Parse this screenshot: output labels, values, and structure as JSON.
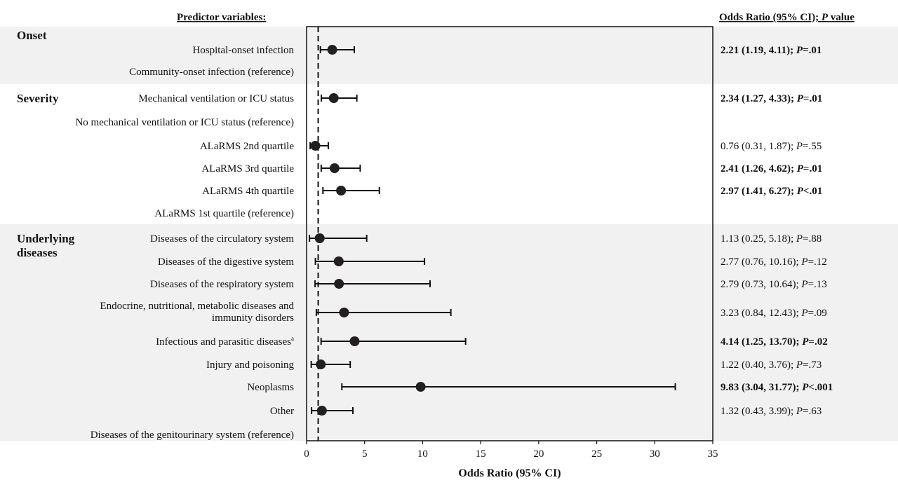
{
  "headers": {
    "predictors": "Predictor variables:",
    "result_prefix": "Odds Ratio (95% CI); ",
    "result_p": "P",
    "result_suffix": " value"
  },
  "chart_data": {
    "type": "forest",
    "xlabel": "Odds Ratio (95% CI)",
    "xlim": [
      0,
      35
    ],
    "xticks": [
      0,
      5,
      10,
      15,
      20,
      25,
      30,
      35
    ],
    "reference_line": 1,
    "groups": [
      {
        "label": "Onset",
        "label_lines": [
          "Onset"
        ],
        "shaded": true,
        "rows": [
          0,
          1
        ]
      },
      {
        "label": "Severity",
        "label_lines": [
          "Severity"
        ],
        "shaded": false,
        "rows": [
          2,
          7
        ]
      },
      {
        "label": "Underlying diseases",
        "label_lines": [
          "Underlying",
          "diseases"
        ],
        "shaded": true,
        "rows": [
          8,
          16
        ]
      }
    ],
    "rows": [
      {
        "label": "Hospital-onset infection",
        "or": 2.21,
        "lo": 1.19,
        "hi": 4.11,
        "ci": "2.21 (1.19, 4.11); ",
        "p": "=.01",
        "bold": true
      },
      {
        "label": "Community-onset infection (reference)"
      },
      {
        "label": "Mechanical ventilation or ICU status",
        "or": 2.34,
        "lo": 1.27,
        "hi": 4.33,
        "ci": "2.34 (1.27, 4.33); ",
        "p": "=.01",
        "bold": true
      },
      {
        "label": "No mechanical ventilation or ICU status (reference)"
      },
      {
        "label": "ALaRMS 2nd quartile",
        "or": 0.76,
        "lo": 0.31,
        "hi": 1.87,
        "ci": "0.76 (0.31, 1.87); ",
        "p": "=.55",
        "bold": false
      },
      {
        "label": "ALaRMS 3rd quartile",
        "or": 2.41,
        "lo": 1.26,
        "hi": 4.62,
        "ci": "2.41 (1.26, 4.62); ",
        "p": "=.01",
        "bold": true
      },
      {
        "label": "ALaRMS 4th quartile",
        "or": 2.97,
        "lo": 1.41,
        "hi": 6.27,
        "ci": "2.97 (1.41, 6.27); ",
        "p": "<.01",
        "bold": true
      },
      {
        "label": "ALaRMS 1st quartile (reference)"
      },
      {
        "label": "Diseases of the circulatory system",
        "or": 1.13,
        "lo": 0.25,
        "hi": 5.18,
        "ci": "1.13 (0.25, 5.18); ",
        "p": "=.88",
        "bold": false
      },
      {
        "label": "Diseases of the digestive system",
        "or": 2.77,
        "lo": 0.76,
        "hi": 10.16,
        "ci": "2.77 (0.76, 10.16); ",
        "p": "=.12",
        "bold": false
      },
      {
        "label": "Diseases of the respiratory system",
        "or": 2.79,
        "lo": 0.73,
        "hi": 10.64,
        "ci": "2.79 (0.73, 10.64); ",
        "p": "=.13",
        "bold": false
      },
      {
        "label": "Endocrine, nutritional, metabolic diseases and immunity disorders",
        "label_lines": [
          "Endocrine, nutritional, metabolic diseases and",
          "immunity disorders"
        ],
        "or": 3.23,
        "lo": 0.84,
        "hi": 12.43,
        "ci": "3.23 (0.84, 12.43); ",
        "p": "=.09",
        "bold": false
      },
      {
        "label": "Infectious and parasitic diseases",
        "sup": "a",
        "or": 4.14,
        "lo": 1.25,
        "hi": 13.7,
        "ci": "4.14 (1.25, 13.70); ",
        "p": "=.02",
        "bold": true
      },
      {
        "label": "Injury and poisoning",
        "or": 1.22,
        "lo": 0.4,
        "hi": 3.76,
        "ci": "1.22 (0.40, 3.76); ",
        "p": "=.73",
        "bold": false
      },
      {
        "label": "Neoplasms",
        "or": 9.83,
        "lo": 3.04,
        "hi": 31.77,
        "ci": "9.83 (3.04, 31.77); ",
        "p": "<.001",
        "bold": true
      },
      {
        "label": "Other",
        "or": 1.32,
        "lo": 0.43,
        "hi": 3.99,
        "ci": "1.32 (0.43, 3.99); ",
        "p": "=.63",
        "bold": false
      },
      {
        "label": "Diseases of the genitourinary system (reference)"
      }
    ]
  }
}
